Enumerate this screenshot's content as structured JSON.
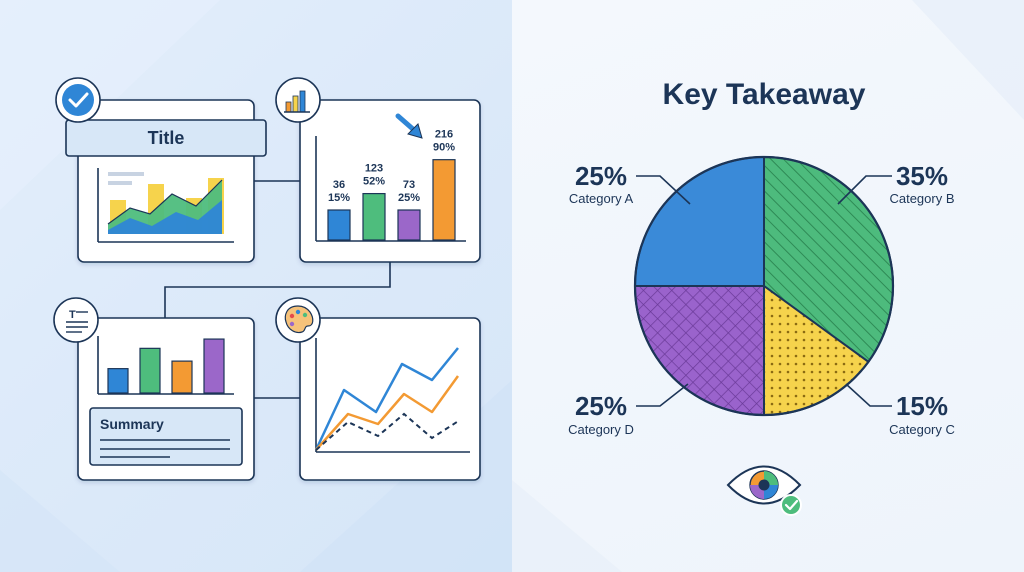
{
  "left": {
    "card1": {
      "title": "Title",
      "legend_text": ""
    },
    "card2": {
      "bars": [
        {
          "value": "36",
          "percent": "15%",
          "color": "#2f86d6"
        },
        {
          "value": "123",
          "percent": "52%",
          "color": "#4ebd7d"
        },
        {
          "value": "73",
          "percent": "25%",
          "color": "#9b67c9"
        },
        {
          "value": "216",
          "percent": "90%",
          "color": "#f39a33"
        }
      ]
    },
    "card3": {
      "bars": [
        {
          "color": "#2f86d6"
        },
        {
          "color": "#4ebd7d"
        },
        {
          "color": "#f39a33"
        },
        {
          "color": "#9b67c9"
        }
      ],
      "summary_title": "Summary"
    },
    "icons": {
      "card1": "check-icon",
      "card2": "bar-chart-icon",
      "card3": "text-lines-icon",
      "card4": "palette-icon"
    }
  },
  "right": {
    "heading": "Key Takeaway",
    "chart_data": {
      "type": "pie",
      "slices": [
        {
          "label": "Category A",
          "value": 25,
          "value_label": "25%",
          "color": "#3a8ad8",
          "pattern": "solid"
        },
        {
          "label": "Category B",
          "value": 35,
          "value_label": "35%",
          "color": "#4dbb7d",
          "pattern": "diagonal-stripes"
        },
        {
          "label": "Category C",
          "value": 15,
          "value_label": "15%",
          "color": "#f6d34c",
          "pattern": "dots"
        },
        {
          "label": "Category D",
          "value": 25,
          "value_label": "25%",
          "color": "#9a63cc",
          "pattern": "crosshatch"
        }
      ]
    },
    "badge_icon": "eye-check-icon"
  },
  "colors": {
    "navy": "#1c3557",
    "blue": "#2f86d6",
    "green": "#4ebd7d",
    "orange": "#f39a33",
    "purple": "#9b67c9",
    "yellow": "#f6d34c"
  }
}
